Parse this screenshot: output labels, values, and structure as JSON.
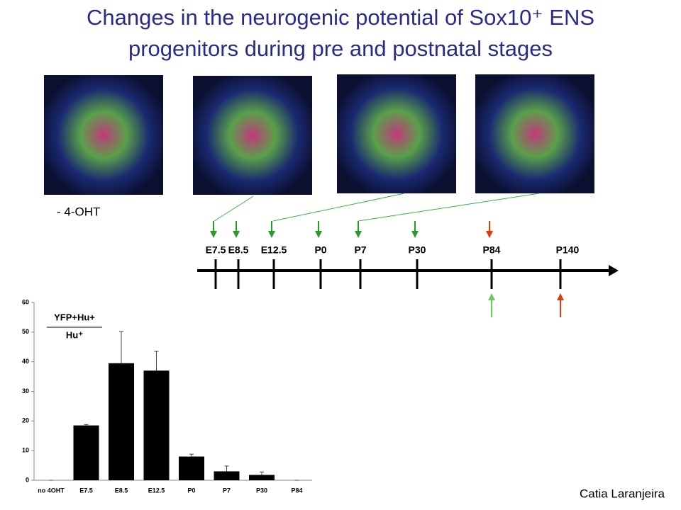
{
  "title": [
    "Changes in the neurogenic potential of Sox10⁺ ENS",
    "progenitors during pre and postnatal stages"
  ],
  "image_label": "- 4-OHT",
  "timeline": [
    "E7.5",
    "E8.5",
    "E12.5",
    "P0",
    "P7",
    "P30",
    "P84",
    "P140"
  ],
  "author": "Catia Laranjeira",
  "chart_data": {
    "type": "bar",
    "y_label_numerator": "YFP+Hu+",
    "y_label_denominator": "Hu⁺",
    "categories": [
      "no 4OHT",
      "E7.5",
      "E8.5",
      "E12.5",
      "P0",
      "P7",
      "P30",
      "P84"
    ],
    "values": [
      0,
      18.5,
      39.5,
      37,
      8,
      3,
      1.8,
      0
    ],
    "errors": [
      0,
      0.3,
      10.7,
      6.5,
      0.8,
      1.8,
      1,
      0
    ],
    "color": "#000000",
    "ylim": [
      0,
      60
    ],
    "yticks": [
      0,
      10,
      20,
      30,
      40,
      50,
      60
    ]
  }
}
